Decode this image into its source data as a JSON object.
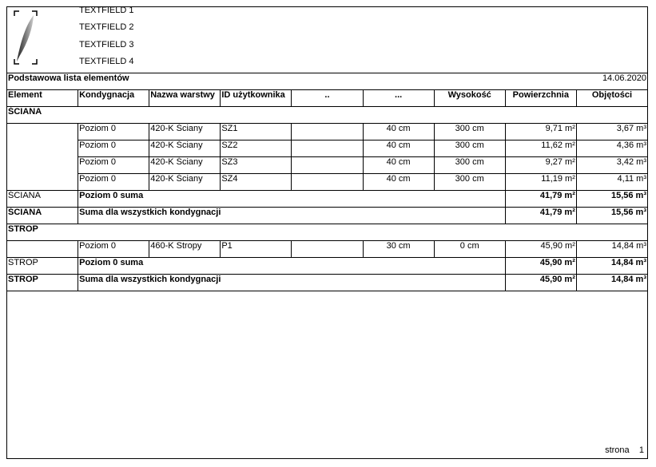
{
  "header": {
    "textfields": [
      "TEXTFIELD 1",
      "TEXTFIELD 2",
      "TEXTFIELD 3",
      "TEXTFIELD 4"
    ],
    "title": "Podstawowa lista elementów",
    "date": "14.06.2020"
  },
  "columns": [
    "Element",
    "Kondygnacja",
    "Nazwa warstwy",
    "ID użytkownika",
    "..",
    "...",
    "Wysokość",
    "Powierzchnia",
    "Objętości"
  ],
  "groups": [
    {
      "name": "ŚCIANA",
      "rows": [
        [
          "Poziom 0",
          "420-K Ściany",
          "SZ1",
          "",
          "40 cm",
          "300 cm",
          "9,71 m²",
          "3,67 m³"
        ],
        [
          "Poziom 0",
          "420-K Ściany",
          "SZ2",
          "",
          "40 cm",
          "300 cm",
          "11,62 m²",
          "4,36 m³"
        ],
        [
          "Poziom 0",
          "420-K Ściany",
          "SZ3",
          "",
          "40 cm",
          "300 cm",
          "9,27 m²",
          "3,42 m³"
        ],
        [
          "Poziom 0",
          "420-K Ściany",
          "SZ4",
          "",
          "40 cm",
          "300 cm",
          "11,19 m²",
          "4,11 m³"
        ]
      ],
      "subtotal": {
        "element": "ŚCIANA",
        "label": "Poziom 0 suma",
        "area": "41,79 m²",
        "volume": "15,56 m³"
      },
      "total": {
        "element": "ŚCIANA",
        "label": "Suma dla wszystkich kondygnacji",
        "area": "41,79 m²",
        "volume": "15,56 m³"
      }
    },
    {
      "name": "STROP",
      "rows": [
        [
          "Poziom 0",
          "460-K Stropy",
          "P1",
          "",
          "30 cm",
          "0 cm",
          "45,90 m²",
          "14,84 m³"
        ]
      ],
      "subtotal": {
        "element": "STROP",
        "label": "Poziom 0 suma",
        "area": "45,90 m²",
        "volume": "14,84 m³"
      },
      "total": {
        "element": "STROP",
        "label": "Suma dla wszystkich kondygnacji",
        "area": "45,90 m²",
        "volume": "14,84 m³"
      }
    }
  ],
  "footer": {
    "page_label": "strona",
    "page_number": "1"
  }
}
